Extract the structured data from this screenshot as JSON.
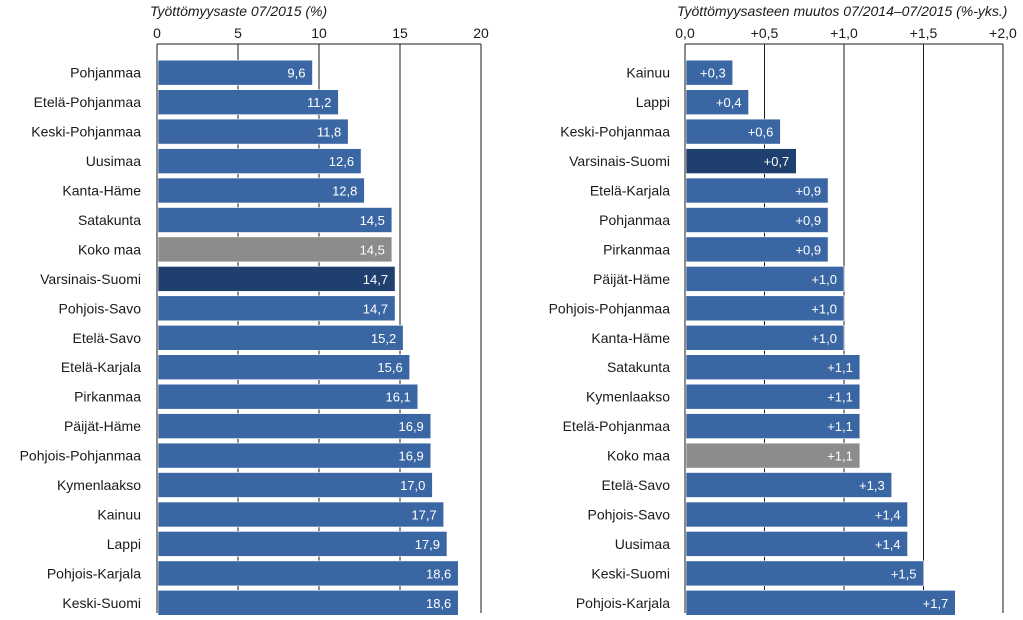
{
  "chart_data": [
    {
      "type": "bar",
      "orientation": "horizontal",
      "title": "Työttömyysaste 07/2015 (%)",
      "xlim": [
        0,
        20
      ],
      "ticks": [
        0,
        5,
        10,
        15,
        20
      ],
      "tick_labels": [
        "0",
        "5",
        "10",
        "15",
        "20"
      ],
      "grid": true,
      "categories": [
        "Pohjanmaa",
        "Etelä-Pohjanmaa",
        "Keski-Pohjanmaa",
        "Uusimaa",
        "Kanta-Häme",
        "Satakunta",
        "Koko maa",
        "Varsinais-Suomi",
        "Pohjois-Savo",
        "Etelä-Savo",
        "Etelä-Karjala",
        "Pirkanmaa",
        "Päijät-Häme",
        "Pohjois-Pohjanmaa",
        "Kymenlaakso",
        "Kainuu",
        "Lappi",
        "Pohjois-Karjala",
        "Keski-Suomi"
      ],
      "values": [
        9.6,
        11.2,
        11.8,
        12.6,
        12.8,
        14.5,
        14.5,
        14.7,
        14.7,
        15.2,
        15.6,
        16.1,
        16.9,
        16.9,
        17.0,
        17.7,
        17.9,
        18.6,
        18.6
      ],
      "value_labels": [
        "9,6",
        "11,2",
        "11,8",
        "12,6",
        "12,8",
        "14,5",
        "14,5",
        "14,7",
        "14,7",
        "15,2",
        "15,6",
        "16,1",
        "16,9",
        "16,9",
        "17,0",
        "17,7",
        "17,9",
        "18,6",
        "18,6"
      ],
      "highlight": {
        "Koko maa": "gray",
        "Varsinais-Suomi": "dark"
      }
    },
    {
      "type": "bar",
      "orientation": "horizontal",
      "title": "Työttömyysasteen muutos 07/2014–07/2015 (%-yks.)",
      "xlim": [
        0,
        2.0
      ],
      "ticks": [
        0,
        0.5,
        1.0,
        1.5,
        2.0
      ],
      "tick_labels": [
        "0,0",
        "+0,5",
        "+1,0",
        "+1,5",
        "+2,0"
      ],
      "grid": true,
      "categories": [
        "Kainuu",
        "Lappi",
        "Keski-Pohjanmaa",
        "Varsinais-Suomi",
        "Etelä-Karjala",
        "Pohjanmaa",
        "Pirkanmaa",
        "Päijät-Häme",
        "Pohjois-Pohjanmaa",
        "Kanta-Häme",
        "Satakunta",
        "Kymenlaakso",
        "Etelä-Pohjanmaa",
        "Koko maa",
        "Etelä-Savo",
        "Pohjois-Savo",
        "Uusimaa",
        "Keski-Suomi",
        "Pohjois-Karjala"
      ],
      "values": [
        0.3,
        0.4,
        0.6,
        0.7,
        0.9,
        0.9,
        0.9,
        1.0,
        1.0,
        1.0,
        1.1,
        1.1,
        1.1,
        1.1,
        1.3,
        1.4,
        1.4,
        1.5,
        1.7
      ],
      "value_labels": [
        "+0,3",
        "+0,4",
        "+0,6",
        "+0,7",
        "+0,9",
        "+0,9",
        "+0,9",
        "+1,0",
        "+1,0",
        "+1,0",
        "+1,1",
        "+1,1",
        "+1,1",
        "+1,1",
        "+1,3",
        "+1,4",
        "+1,4",
        "+1,5",
        "+1,7"
      ],
      "highlight": {
        "Koko maa": "gray",
        "Varsinais-Suomi": "dark"
      }
    }
  ],
  "colors": {
    "bar": "#3a66a3",
    "bar_highlight": "#1f3f6e",
    "bar_total": "#8c8c8c",
    "bar_edge": "#ffffff",
    "grid": "#1a1a1a",
    "text": "#1a1a1a",
    "value_text": "#ffffff"
  }
}
